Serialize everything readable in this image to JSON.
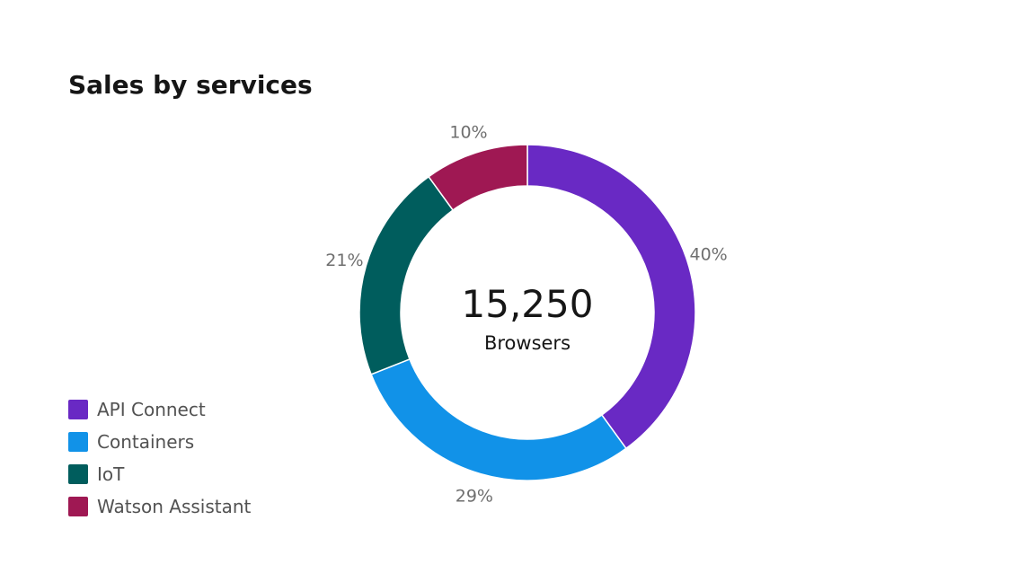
{
  "chart_data": {
    "type": "pie",
    "title": "Sales by services",
    "center": {
      "value": "15,250",
      "label": "Browsers"
    },
    "categories": [
      "API Connect",
      "Containers",
      "IoT",
      "Watson Assistant"
    ],
    "values": [
      40,
      29,
      21,
      10
    ],
    "value_labels": [
      "40%",
      "29%",
      "21%",
      "10%"
    ],
    "colors": [
      "#6929c4",
      "#1192e8",
      "#005d5d",
      "#9f1853"
    ],
    "donut": true,
    "legend_position": "bottom-left"
  }
}
